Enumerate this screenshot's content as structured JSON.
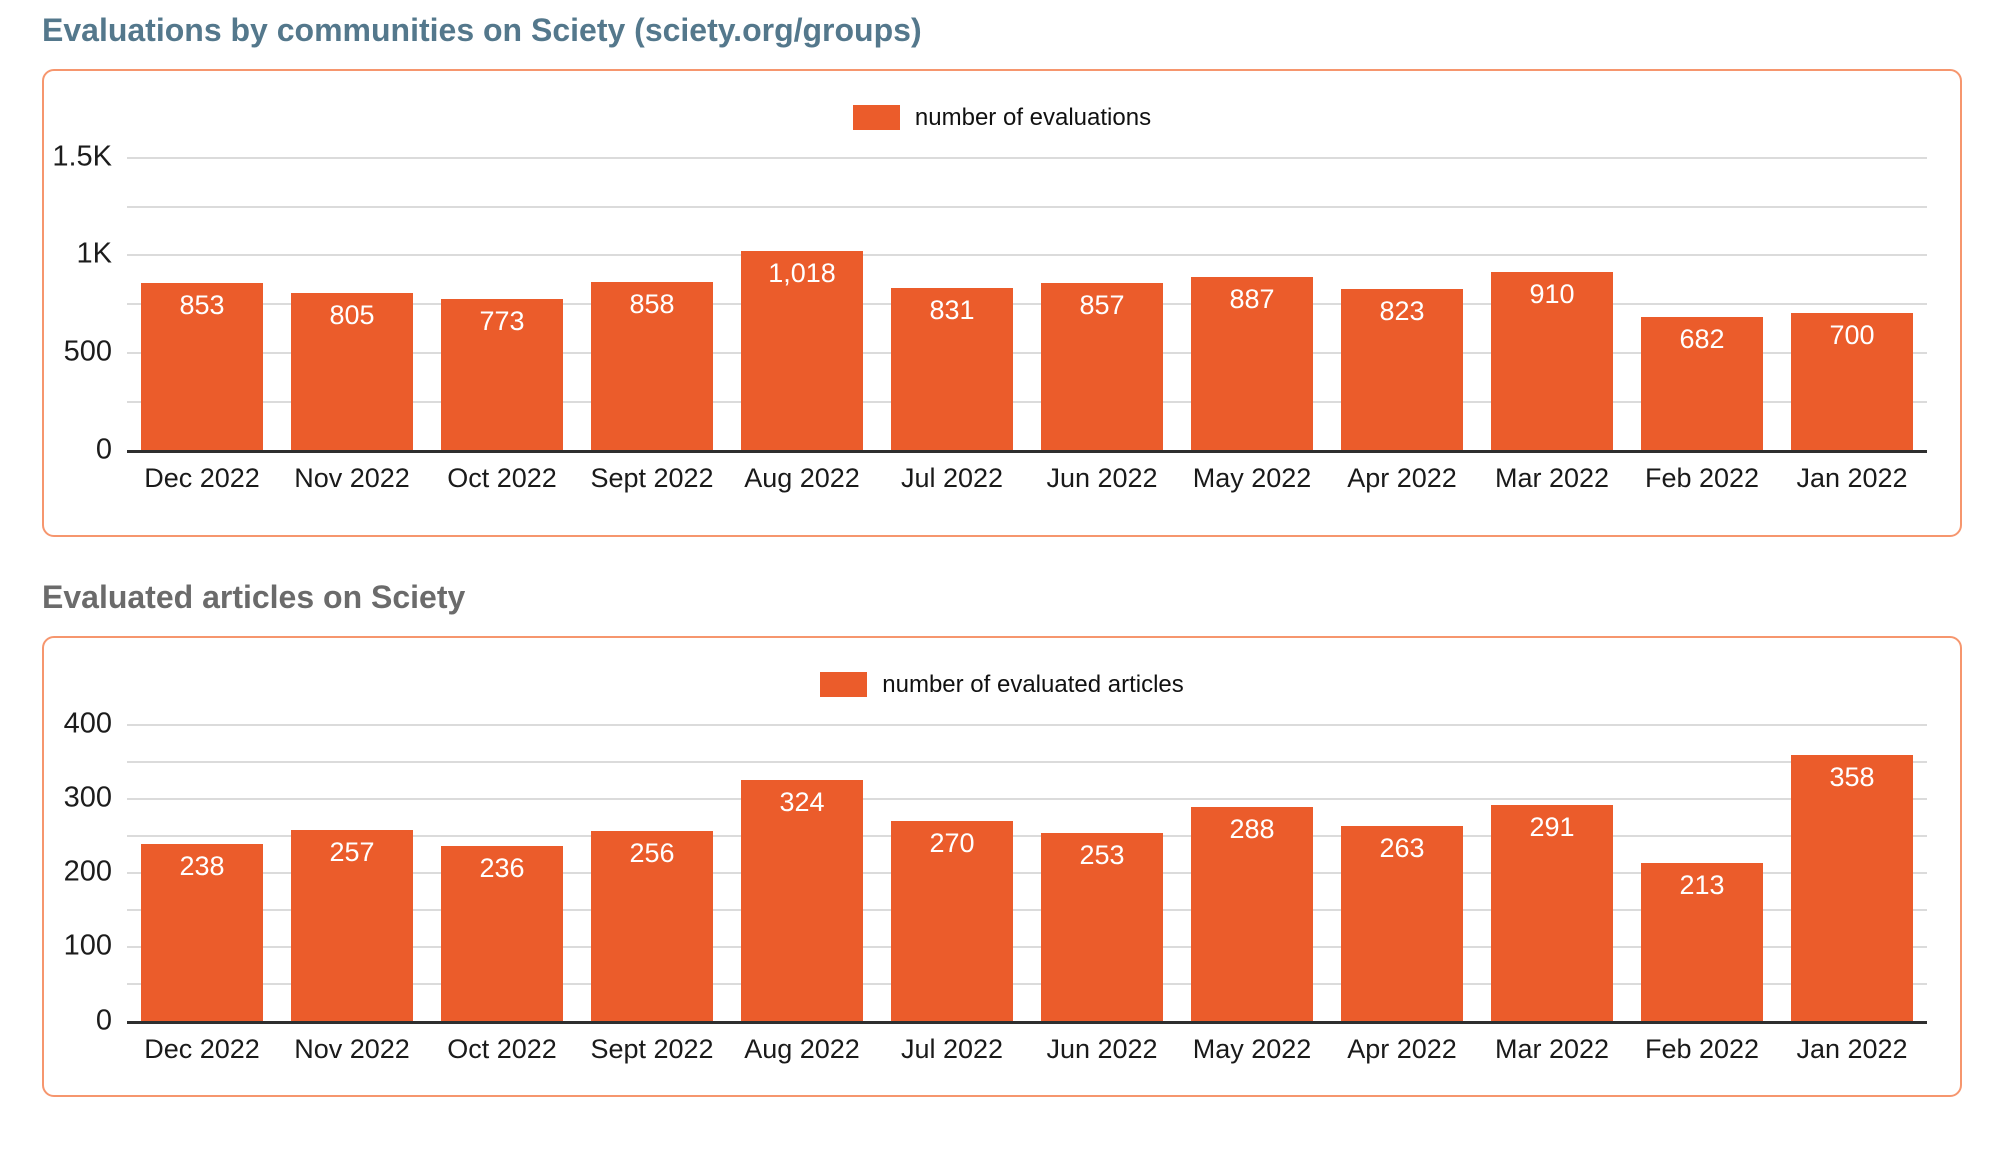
{
  "styles": {
    "bar_orange": "#eb5c2b",
    "box_border_orange": "#f6966e",
    "title_colors": [
      "#54788c",
      "#6b6b6b"
    ],
    "gridline_gray": "#dbdbdb",
    "axis_black": "#2f2f2f",
    "bar_label_white": "#ffffff"
  },
  "chart_data": [
    {
      "type": "bar",
      "title": "Evaluations by communities on Sciety (sciety.org/groups)",
      "legend": [
        "number of evaluations"
      ],
      "legend_position": "top-center",
      "grid": true,
      "categories": [
        "Dec 2022",
        "Nov 2022",
        "Oct 2022",
        "Sept 2022",
        "Aug 2022",
        "Jul 2022",
        "Jun 2022",
        "May 2022",
        "Apr 2022",
        "Mar 2022",
        "Feb 2022",
        "Jan 2022"
      ],
      "values": [
        853,
        805,
        773,
        858,
        1018,
        831,
        857,
        887,
        823,
        910,
        682,
        700
      ],
      "value_labels": [
        "853",
        "805",
        "773",
        "858",
        "1,018",
        "831",
        "857",
        "887",
        "823",
        "910",
        "682",
        "700"
      ],
      "xlabel": "",
      "ylabel": "",
      "ylim": [
        0,
        1500
      ],
      "ytick_values": [
        0,
        500,
        1000,
        1500
      ],
      "ytick_labels": [
        "0",
        "500",
        "1K",
        "1.5K"
      ],
      "gridline_step": 250,
      "bar_color": "#eb5c2b",
      "label_color": "#ffffff"
    },
    {
      "type": "bar",
      "title": "Evaluated articles on Sciety",
      "legend": [
        "number of evaluated articles"
      ],
      "legend_position": "top-center",
      "grid": true,
      "categories": [
        "Dec 2022",
        "Nov 2022",
        "Oct 2022",
        "Sept 2022",
        "Aug 2022",
        "Jul 2022",
        "Jun 2022",
        "May 2022",
        "Apr 2022",
        "Mar 2022",
        "Feb 2022",
        "Jan 2022"
      ],
      "values": [
        238,
        257,
        236,
        256,
        324,
        270,
        253,
        288,
        263,
        291,
        213,
        358
      ],
      "value_labels": [
        "238",
        "257",
        "236",
        "256",
        "324",
        "270",
        "253",
        "288",
        "263",
        "291",
        "213",
        "358"
      ],
      "xlabel": "",
      "ylabel": "",
      "ylim": [
        0,
        400
      ],
      "ytick_values": [
        0,
        100,
        200,
        300,
        400
      ],
      "ytick_labels": [
        "0",
        "100",
        "200",
        "300",
        "400"
      ],
      "gridline_step": 50,
      "bar_color": "#eb5c2b",
      "label_color": "#ffffff"
    }
  ]
}
